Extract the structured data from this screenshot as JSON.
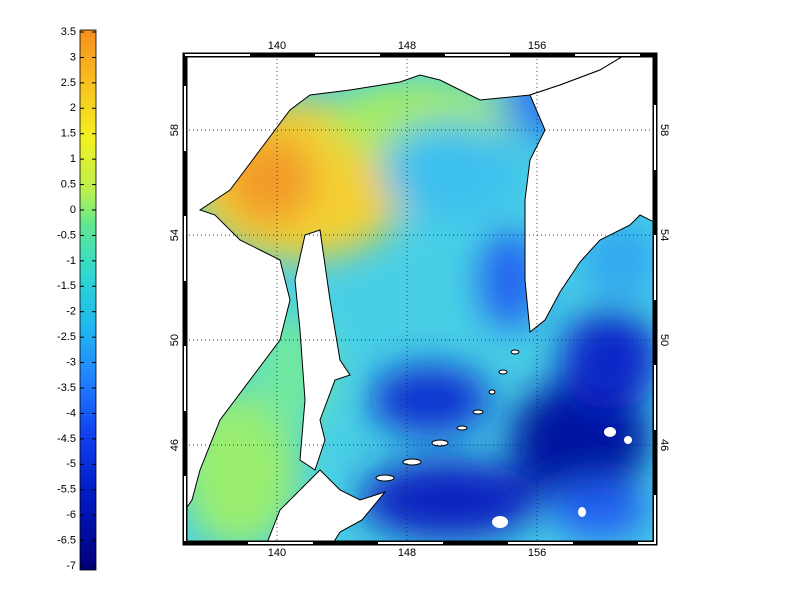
{
  "map": {
    "xlim": [
      134.34,
      163.26
    ],
    "ylim": [
      42.27,
      60.86
    ],
    "xticks": [
      140,
      148,
      156
    ],
    "yticks": [
      46,
      50,
      54,
      58
    ],
    "grid": true
  },
  "colorbar": {
    "lim": [
      -7,
      3.5
    ],
    "ticks": [
      3.5,
      3,
      2.5,
      2,
      1.5,
      1,
      0.5,
      0,
      -0.5,
      -1,
      -1.5,
      -2,
      -2.5,
      -3,
      -3.5,
      -4,
      -4.5,
      -5,
      -5.5,
      -6,
      -6.5,
      -7
    ]
  }
}
